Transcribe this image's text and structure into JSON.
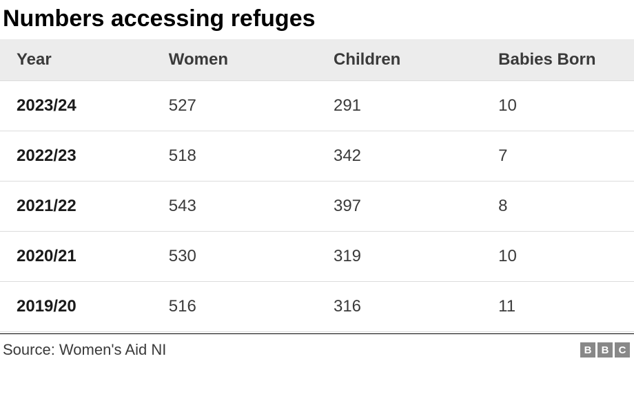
{
  "title": "Numbers accessing refuges",
  "table": {
    "type": "table",
    "columns": [
      "Year",
      "Women",
      "Children",
      "Babies Born"
    ],
    "column_widths": [
      "24%",
      "26%",
      "26%",
      "24%"
    ],
    "rows": [
      [
        "2023/24",
        "527",
        "291",
        "10"
      ],
      [
        "2022/23",
        "518",
        "342",
        "7"
      ],
      [
        "2021/22",
        "543",
        "397",
        "8"
      ],
      [
        "2020/21",
        "530",
        "319",
        "10"
      ],
      [
        "2019/20",
        "516",
        "316",
        "11"
      ]
    ],
    "header_bg": "#ececec",
    "row_bg": "#ffffff",
    "border_color": "#dcdcdc",
    "header_font_color": "#3a3a3a",
    "cell_font_color": "#3a3a3a",
    "year_font_weight": "bold",
    "header_fontsize": 24,
    "cell_fontsize": 24
  },
  "source": "Source: Women's Aid NI",
  "logo": {
    "letters": [
      "B",
      "B",
      "C"
    ],
    "box_bg": "#888888",
    "box_fg": "#ffffff"
  },
  "colors": {
    "background": "#ffffff",
    "title": "#000000",
    "footer_border": "#000000"
  },
  "title_fontsize": 34
}
